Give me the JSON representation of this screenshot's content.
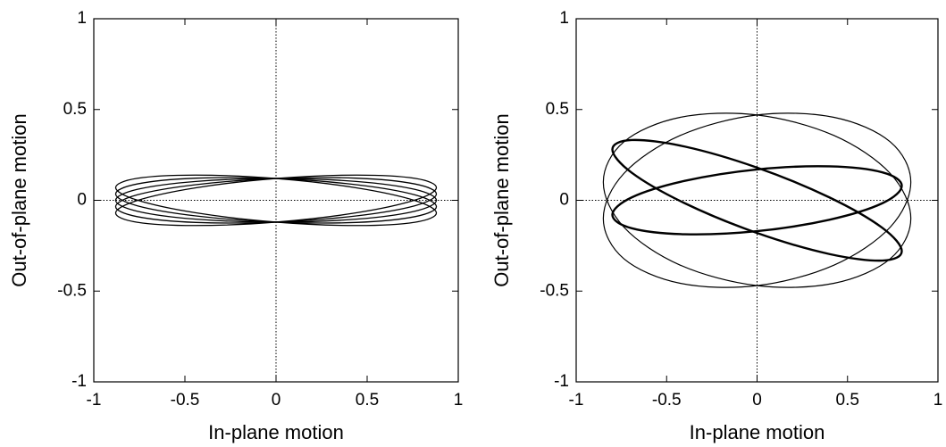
{
  "chart_data": [
    {
      "type": "line",
      "xlabel": "In-plane motion",
      "ylabel": "Out-of-plane motion",
      "xlim": [
        -1,
        1
      ],
      "ylim": [
        -1,
        1
      ],
      "xticks": [
        -1,
        -0.5,
        0,
        0.5,
        1
      ],
      "yticks": [
        -1,
        -0.5,
        0,
        0.5,
        1
      ],
      "zero_lines": true,
      "color": "#000000",
      "series": [
        {
          "line_width": 1.3,
          "x": [
            0.88,
            0.762,
            0.44,
            0,
            -0.44,
            -0.762,
            -0.88,
            -0.762,
            -0.44,
            0,
            0.44,
            0.762
          ],
          "y": [
            -0.07,
            -0.001,
            0.069,
            0.12,
            0.139,
            0.121,
            0.07,
            0.001,
            -0.069,
            -0.12,
            -0.139,
            -0.121
          ]
        },
        {
          "line_width": 1.3,
          "x": [
            0.88,
            0.762,
            0.44,
            0,
            -0.44,
            -0.762,
            -0.88,
            -0.762,
            -0.44,
            0,
            0.44,
            0.762
          ],
          "y": [
            -0.035,
            0.03,
            0.086,
            0.12,
            0.122,
            0.09,
            0.035,
            -0.03,
            -0.086,
            -0.12,
            -0.122,
            -0.09
          ]
        },
        {
          "line_width": 1.3,
          "x": [
            0.88,
            0.762,
            0.44,
            0,
            -0.44,
            -0.762,
            -0.88,
            -0.762,
            -0.44,
            0,
            0.44,
            0.762
          ],
          "y": [
            0,
            0.06,
            0.104,
            0.12,
            0.104,
            0.06,
            0,
            -0.06,
            -0.104,
            -0.12,
            -0.104,
            -0.06
          ]
        },
        {
          "line_width": 1.3,
          "x": [
            0.88,
            0.762,
            0.44,
            0,
            -0.44,
            -0.762,
            -0.88,
            -0.762,
            -0.44,
            0,
            0.44,
            0.762
          ],
          "y": [
            0.035,
            0.09,
            0.122,
            0.12,
            0.086,
            0.03,
            -0.035,
            -0.09,
            -0.122,
            -0.12,
            -0.086,
            -0.03
          ]
        },
        {
          "line_width": 1.3,
          "x": [
            0.88,
            0.762,
            0.44,
            0,
            -0.44,
            -0.762,
            -0.88,
            -0.762,
            -0.44,
            0,
            0.44,
            0.762
          ],
          "y": [
            0.07,
            0.121,
            0.139,
            0.12,
            0.069,
            -0.001,
            -0.07,
            -0.121,
            -0.139,
            -0.12,
            -0.069,
            0.001
          ]
        }
      ]
    },
    {
      "type": "line",
      "xlabel": "In-plane motion",
      "ylabel": "Out-of-plane motion",
      "xlim": [
        -1,
        1
      ],
      "ylim": [
        -1,
        1
      ],
      "xticks": [
        -1,
        -0.5,
        0,
        0.5,
        1
      ],
      "yticks": [
        -1,
        -0.5,
        0,
        0.5,
        1
      ],
      "zero_lines": true,
      "color": "#000000",
      "series": [
        {
          "line_width": 1.2,
          "x": [
            0.85,
            0.736,
            0.425,
            0,
            -0.425,
            -0.736,
            -0.85,
            -0.736,
            -0.425,
            0,
            0.425,
            0.736
          ],
          "y": [
            -0.1,
            0.148,
            0.357,
            0.47,
            0.457,
            0.322,
            0.1,
            -0.148,
            -0.357,
            -0.47,
            -0.457,
            -0.322
          ]
        },
        {
          "line_width": 1.2,
          "x": [
            0.85,
            0.736,
            0.425,
            0,
            -0.425,
            -0.736,
            -0.85,
            -0.736,
            -0.425,
            0,
            0.425,
            0.736
          ],
          "y": [
            0.1,
            0.322,
            0.457,
            0.47,
            0.357,
            0.148,
            -0.1,
            -0.322,
            -0.457,
            -0.47,
            -0.357,
            -0.148
          ]
        },
        {
          "line_width": 2.4,
          "x": [
            0.8,
            0.693,
            0.4,
            0,
            -0.4,
            -0.693,
            -0.8,
            -0.693,
            -0.4,
            0,
            0.4,
            0.693
          ],
          "y": [
            -0.28,
            -0.152,
            0.016,
            0.18,
            0.296,
            0.332,
            0.28,
            0.152,
            -0.016,
            -0.18,
            -0.296,
            -0.332
          ]
        },
        {
          "line_width": 2.4,
          "x": [
            0.8,
            0.693,
            0.4,
            0,
            -0.4,
            -0.693,
            -0.8,
            -0.693,
            -0.4,
            0,
            0.4,
            0.693
          ],
          "y": [
            0.08,
            0.154,
            0.187,
            0.17,
            0.107,
            0.016,
            -0.08,
            -0.154,
            -0.187,
            -0.17,
            -0.107,
            -0.016
          ]
        }
      ]
    }
  ]
}
